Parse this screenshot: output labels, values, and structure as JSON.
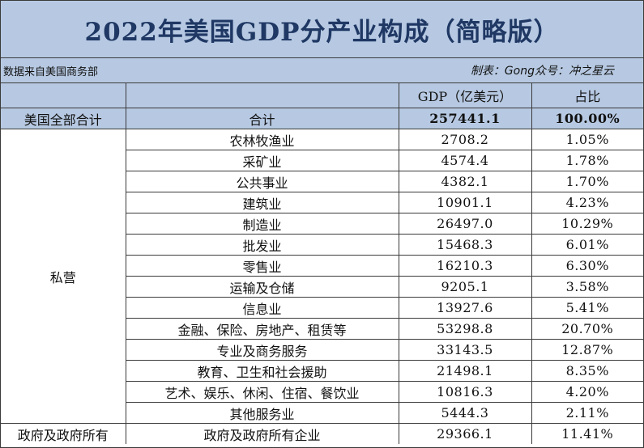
{
  "title": "2022年美国GDP分产业构成（简略版）",
  "source": "数据来自美国商务部",
  "credit": "制表：Gong众号：冲之星云",
  "header": {
    "blank1": "",
    "blank2": "",
    "gdp": "GDP（亿美元）",
    "share": "占比"
  },
  "total": {
    "group": "美国全部合计",
    "label": "合计",
    "gdp": "257441.1",
    "share": "100.00%"
  },
  "private_group": "私营",
  "rows": [
    {
      "industry": "农林牧渔业",
      "gdp": "2708.2",
      "share": "1.05%"
    },
    {
      "industry": "采矿业",
      "gdp": "4574.4",
      "share": "1.78%"
    },
    {
      "industry": "公共事业",
      "gdp": "4382.1",
      "share": "1.70%"
    },
    {
      "industry": "建筑业",
      "gdp": "10901.1",
      "share": "4.23%"
    },
    {
      "industry": "制造业",
      "gdp": "26497.0",
      "share": "10.29%"
    },
    {
      "industry": "批发业",
      "gdp": "15468.3",
      "share": "6.01%"
    },
    {
      "industry": "零售业",
      "gdp": "16210.3",
      "share": "6.30%"
    },
    {
      "industry": "运输及仓储",
      "gdp": "9205.1",
      "share": "3.58%"
    },
    {
      "industry": "信息业",
      "gdp": "13927.6",
      "share": "5.41%"
    },
    {
      "industry": "金融、保险、房地产、租赁等",
      "gdp": "53298.8",
      "share": "20.70%"
    },
    {
      "industry": "专业及商务服务",
      "gdp": "33143.5",
      "share": "12.87%"
    },
    {
      "industry": "教育、卫生和社会援助",
      "gdp": "21498.1",
      "share": "8.35%"
    },
    {
      "industry": "艺术、娱乐、休闲、住宿、餐饮业",
      "gdp": "10816.3",
      "share": "4.20%"
    },
    {
      "industry": "其他服务业",
      "gdp": "5444.3",
      "share": "2.11%"
    }
  ],
  "government": {
    "group": "政府及政府所有",
    "industry": "政府及政府所有企业",
    "gdp": "29366.1",
    "share": "11.41%"
  }
}
